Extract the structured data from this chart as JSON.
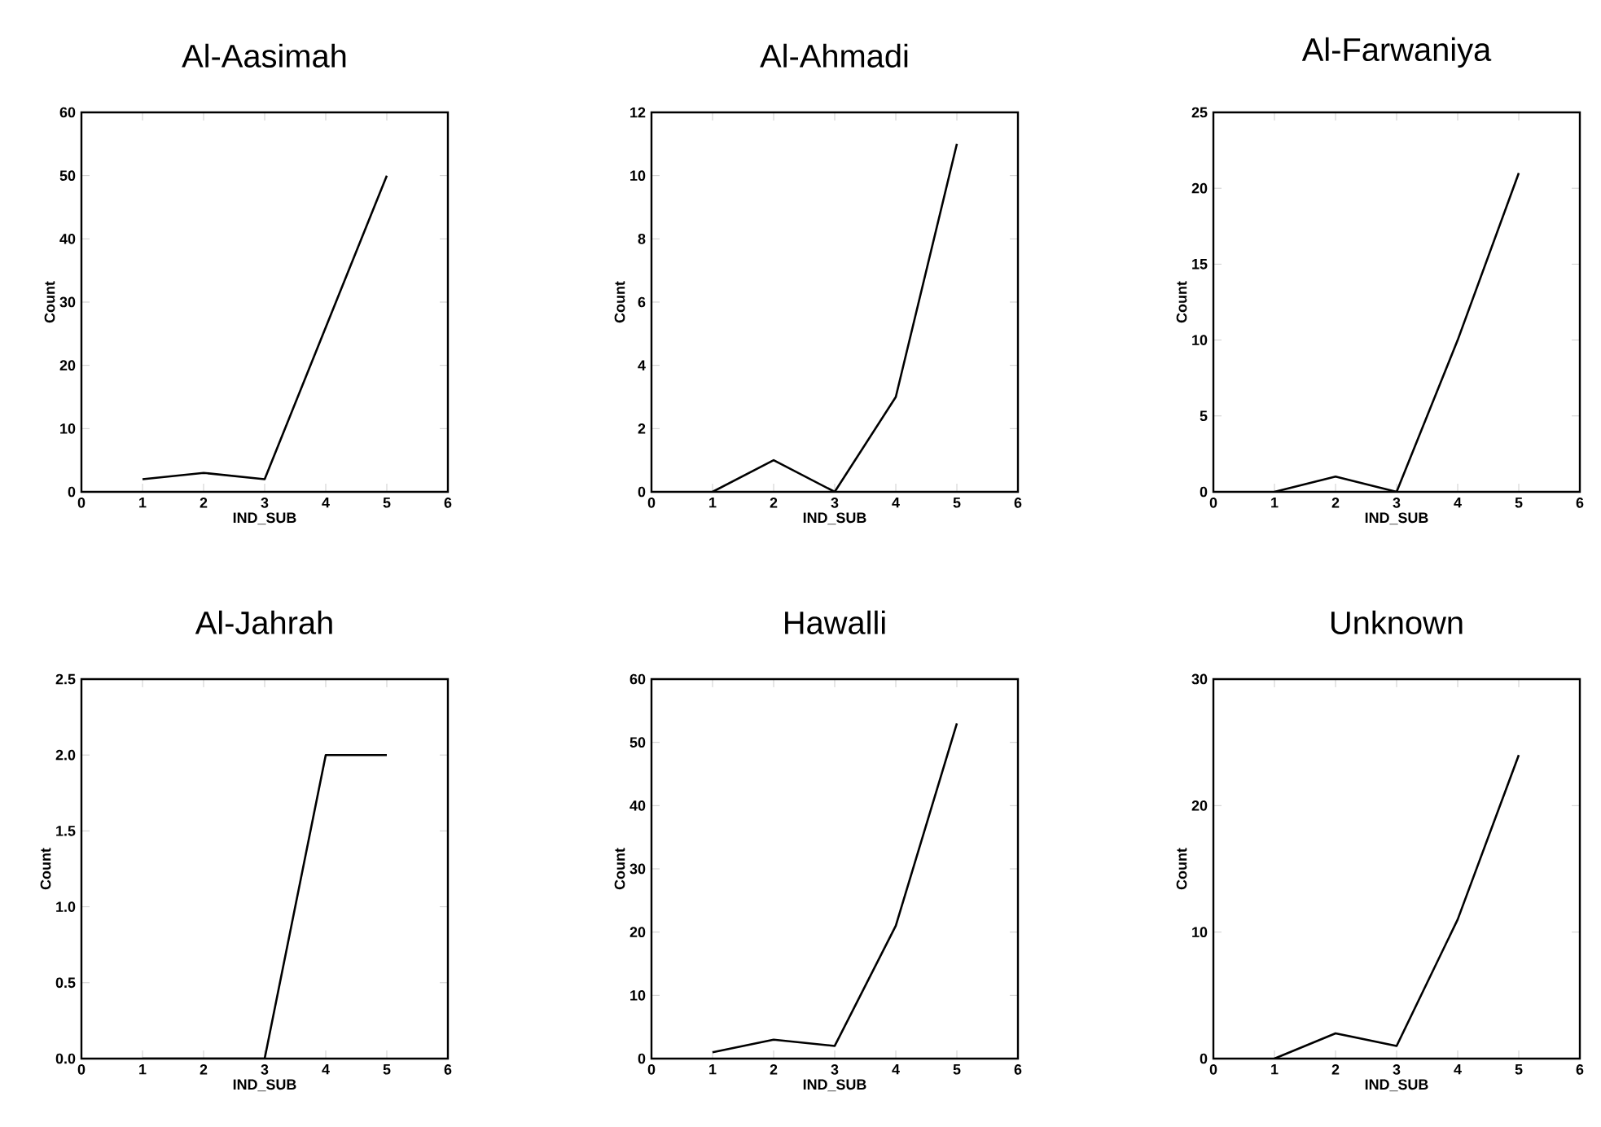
{
  "chart_data": [
    {
      "type": "line",
      "title": "Al-Aasimah",
      "xlabel": "IND_SUB",
      "ylabel": "Count",
      "x": [
        1,
        2,
        3,
        4,
        5
      ],
      "values": [
        2,
        3,
        2,
        26,
        50
      ],
      "color": "#000000",
      "xlim": [
        0,
        6
      ],
      "xticks": [
        0,
        1,
        2,
        3,
        4,
        5,
        6
      ],
      "ylim": [
        0,
        60
      ],
      "yticks": [
        0,
        10,
        20,
        30,
        40,
        50,
        60
      ]
    },
    {
      "type": "line",
      "title": "Al-Ahmadi",
      "xlabel": "IND_SUB",
      "ylabel": "Count",
      "x": [
        1,
        2,
        3,
        4,
        5
      ],
      "values": [
        0,
        1,
        0,
        3,
        11
      ],
      "color": "#000000",
      "xlim": [
        0,
        6
      ],
      "xticks": [
        0,
        1,
        2,
        3,
        4,
        5,
        6
      ],
      "ylim": [
        0,
        12
      ],
      "yticks": [
        0,
        2,
        4,
        6,
        8,
        10,
        12
      ]
    },
    {
      "type": "line",
      "title": "Al-Farwaniya",
      "xlabel": "IND_SUB",
      "ylabel": "Count",
      "x": [
        1,
        2,
        3,
        4,
        5
      ],
      "values": [
        0,
        1,
        0,
        10,
        21
      ],
      "color": "#000000",
      "xlim": [
        0,
        6
      ],
      "xticks": [
        0,
        1,
        2,
        3,
        4,
        5,
        6
      ],
      "ylim": [
        0,
        25
      ],
      "yticks": [
        0,
        5,
        10,
        15,
        20,
        25
      ]
    },
    {
      "type": "line",
      "title": "Al-Jahrah",
      "xlabel": "IND_SUB",
      "ylabel": "Count",
      "x": [
        1,
        2,
        3,
        4,
        5
      ],
      "values": [
        0,
        0,
        0,
        2,
        2
      ],
      "color": "#000000",
      "xlim": [
        0,
        6
      ],
      "xticks": [
        0,
        1,
        2,
        3,
        4,
        5,
        6
      ],
      "ylim": [
        0,
        2.5
      ],
      "yticks": [
        {
          "value": 0,
          "label": "0.0"
        },
        {
          "value": 0.5,
          "label": "0.5"
        },
        {
          "value": 1,
          "label": "1.0"
        },
        {
          "value": 1.5,
          "label": "1.5"
        },
        {
          "value": 2,
          "label": "2.0"
        },
        {
          "value": 2.5,
          "label": "2.5"
        }
      ]
    },
    {
      "type": "line",
      "title": "Hawalli",
      "xlabel": "IND_SUB",
      "ylabel": "Count",
      "x": [
        1,
        2,
        3,
        4,
        5
      ],
      "values": [
        1,
        3,
        2,
        21,
        53
      ],
      "color": "#000000",
      "xlim": [
        0,
        6
      ],
      "xticks": [
        0,
        1,
        2,
        3,
        4,
        5,
        6
      ],
      "ylim": [
        0,
        60
      ],
      "yticks": [
        0,
        10,
        20,
        30,
        40,
        50,
        60
      ]
    },
    {
      "type": "line",
      "title": "Unknown",
      "xlabel": "IND_SUB",
      "ylabel": "Count",
      "x": [
        1,
        2,
        3,
        4,
        5
      ],
      "values": [
        0,
        2,
        1,
        11,
        24
      ],
      "color": "#000000",
      "xlim": [
        0,
        6
      ],
      "xticks": [
        0,
        1,
        2,
        3,
        4,
        5,
        6
      ],
      "ylim": [
        0,
        30
      ],
      "yticks": [
        0,
        10,
        20,
        30
      ]
    }
  ]
}
